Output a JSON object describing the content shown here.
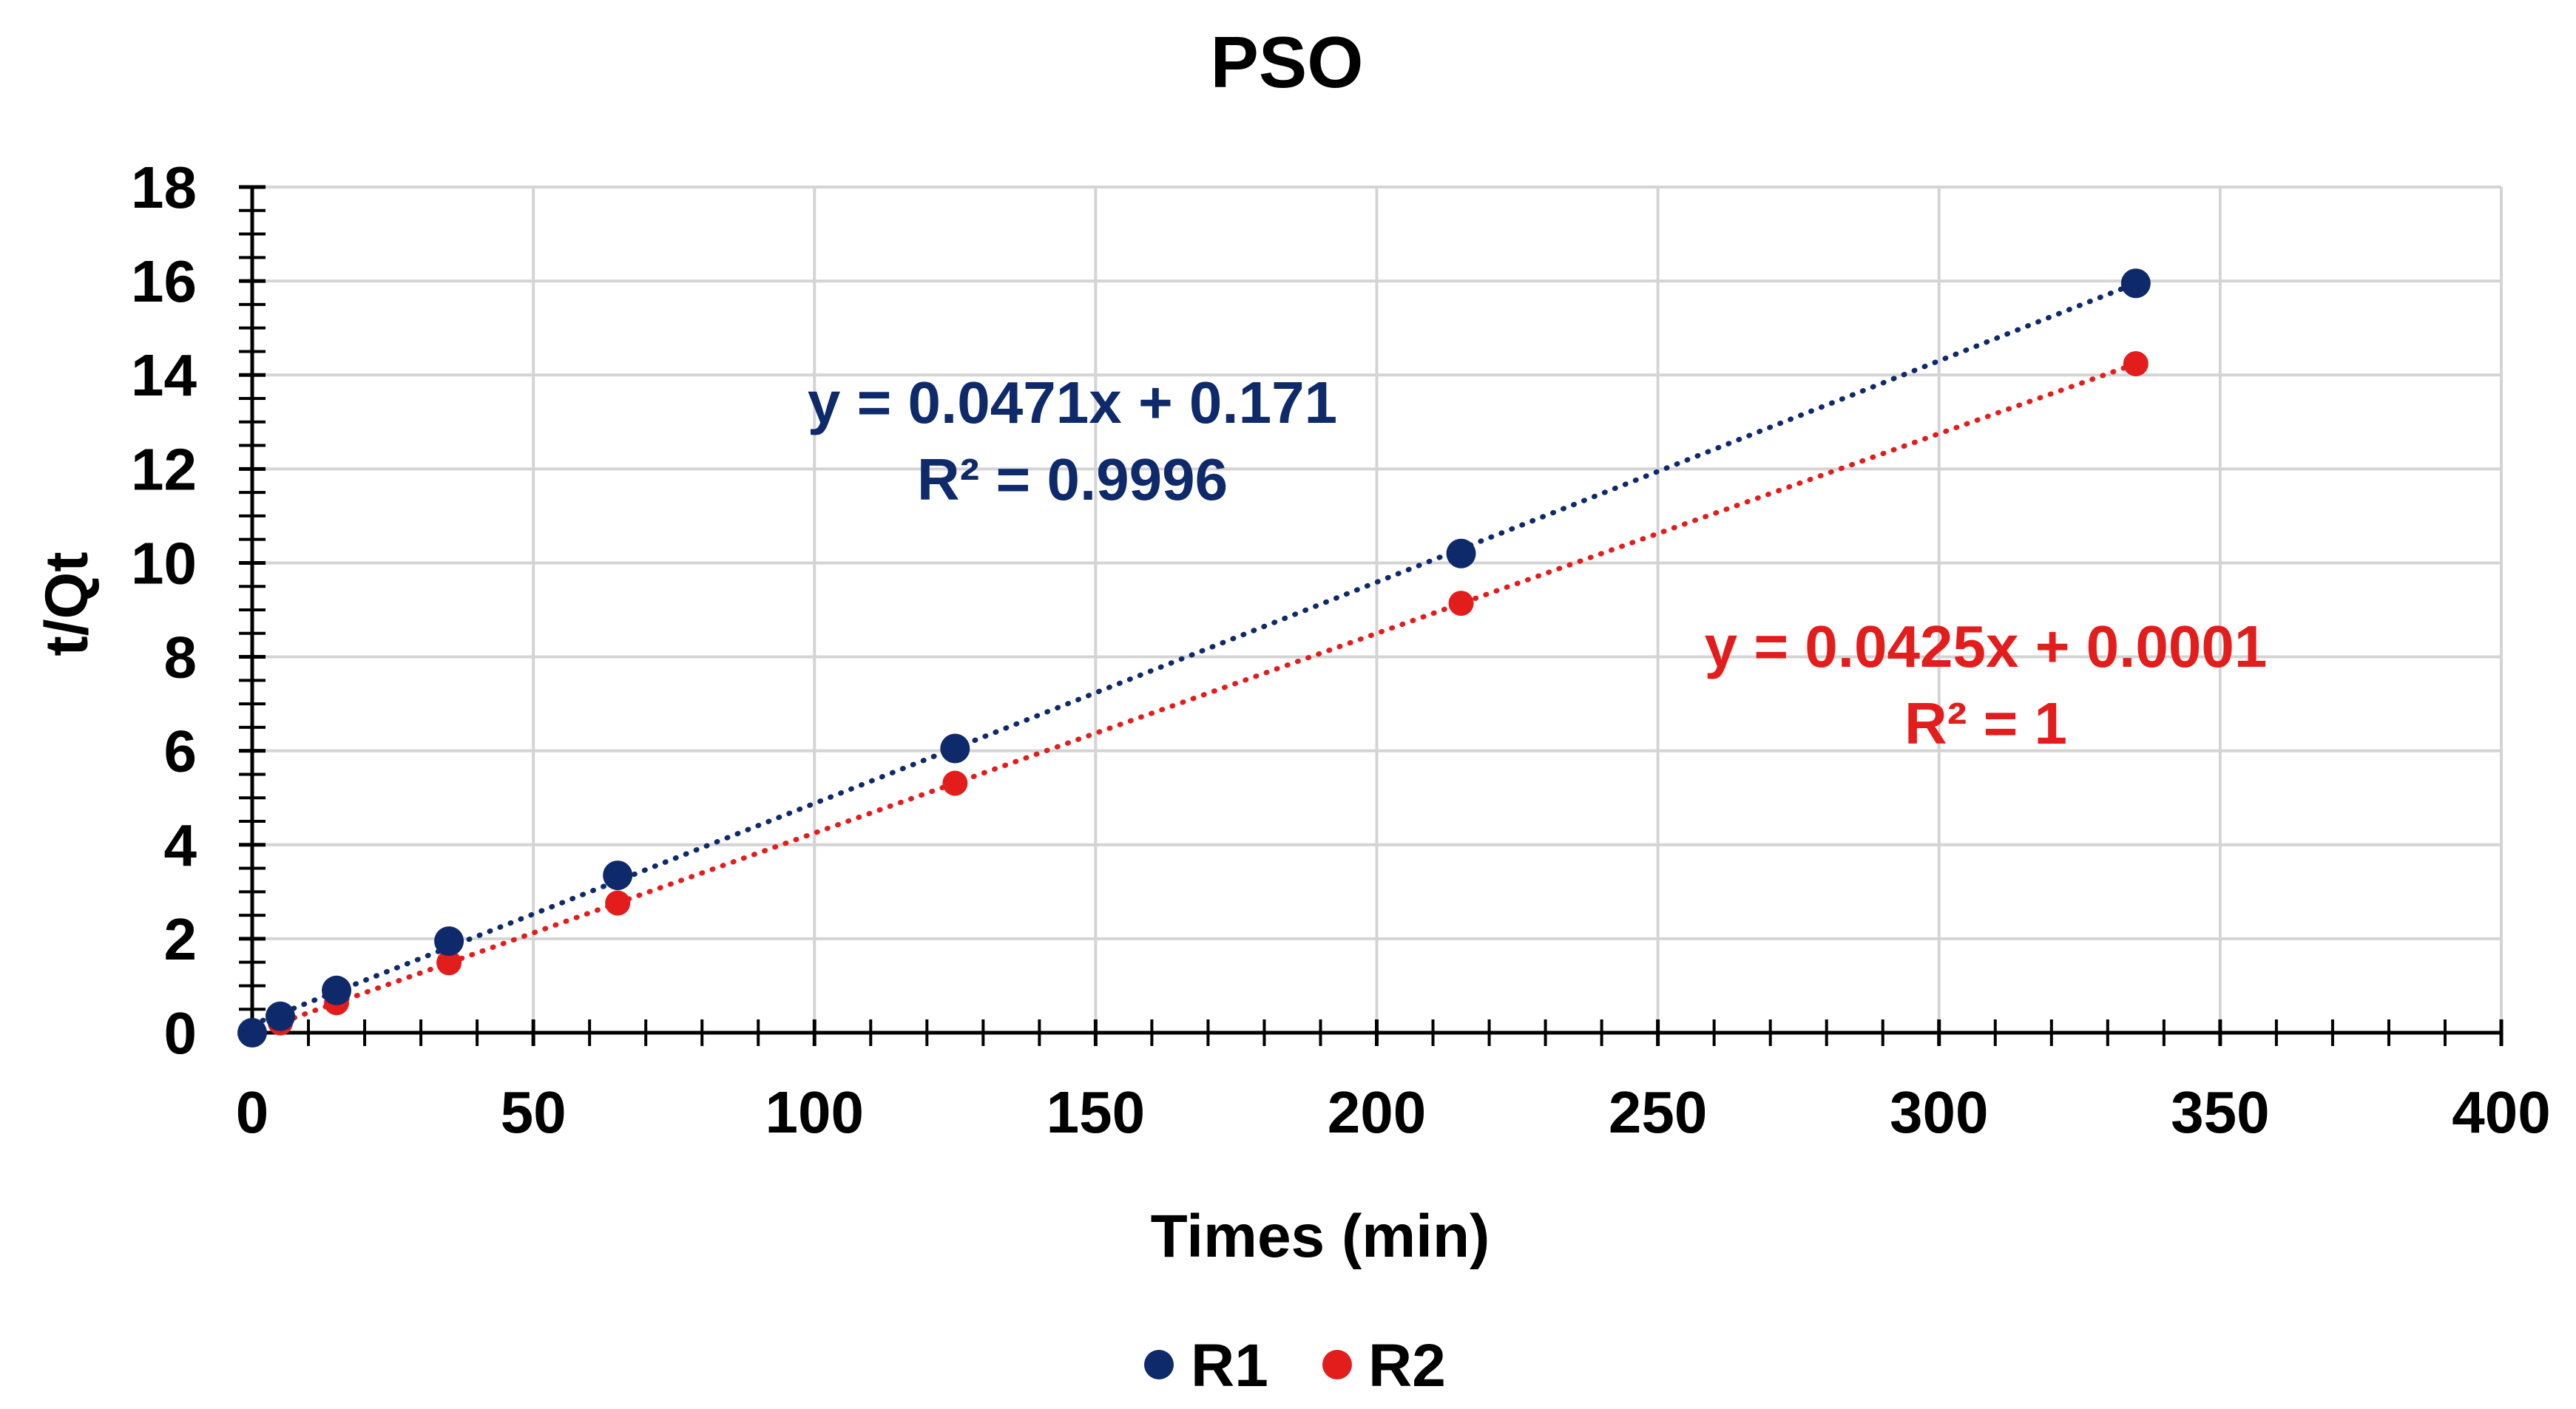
{
  "chart_data": {
    "type": "scatter",
    "title": "PSO",
    "xlabel": "Times (min)",
    "ylabel": "t/Qt",
    "xlim": [
      0,
      400
    ],
    "ylim": [
      0,
      18
    ],
    "xticks": [
      0,
      50,
      100,
      150,
      200,
      250,
      300,
      350,
      400
    ],
    "yticks": [
      0,
      2,
      4,
      6,
      8,
      10,
      12,
      14,
      16,
      18
    ],
    "grid": true,
    "legend_position": "bottom-center",
    "series": [
      {
        "name": "R1",
        "color": "#0e2a6b",
        "x": [
          0,
          5,
          15,
          35,
          65,
          125,
          215,
          335
        ],
        "y": [
          0,
          0.35,
          0.9,
          1.95,
          3.35,
          6.05,
          10.2,
          15.95
        ],
        "trendline": {
          "slope": 0.0471,
          "intercept": 0.171,
          "x_range": [
            0,
            335
          ]
        },
        "equation": "y = 0.0471x + 0.171",
        "r2": "R² = 0.9996"
      },
      {
        "name": "R2",
        "color": "#e31c1c",
        "x": [
          0,
          5,
          15,
          35,
          65,
          125,
          215,
          335
        ],
        "y": [
          0,
          0.21,
          0.64,
          1.49,
          2.76,
          5.31,
          9.14,
          14.24
        ],
        "trendline": {
          "slope": 0.0425,
          "intercept": 0.0001,
          "x_range": [
            0,
            335
          ]
        },
        "equation": "y = 0.0425x + 0.0001",
        "r2": "R² = 1"
      }
    ]
  }
}
